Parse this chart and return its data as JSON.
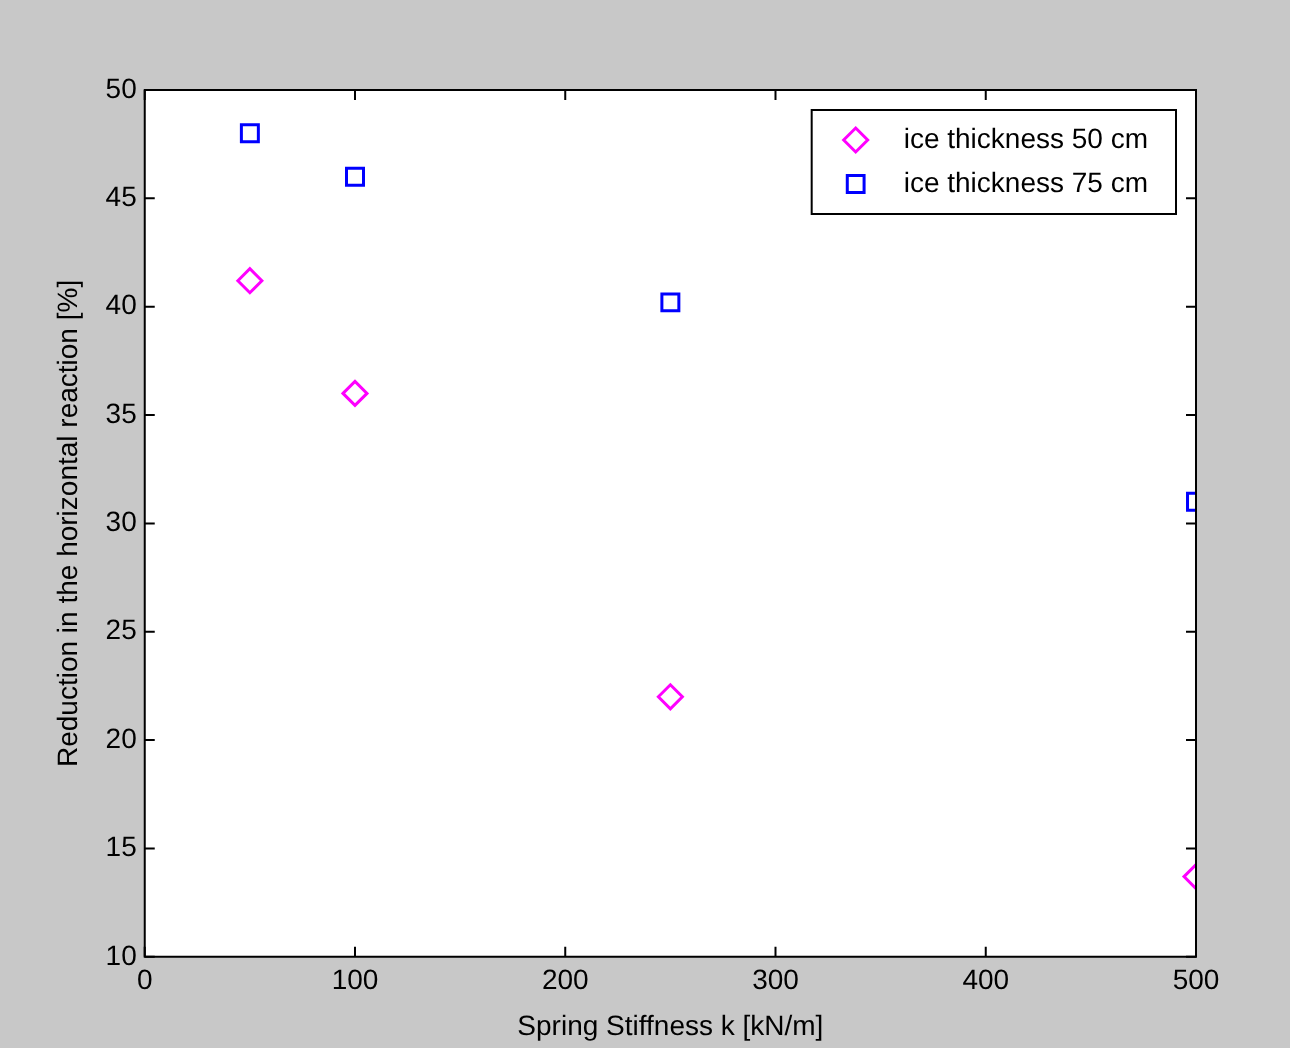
{
  "chart_data": {
    "type": "scatter",
    "xlabel": "Spring Stiffness k [kN/m]",
    "ylabel": "Reduction in the horizontal reaction [%]",
    "xlim": [
      0,
      500
    ],
    "xticks": [
      0,
      100,
      200,
      300,
      400,
      500
    ],
    "ylim": [
      10,
      50
    ],
    "yticks": [
      10,
      15,
      20,
      25,
      30,
      35,
      40,
      45,
      50
    ],
    "grid": false,
    "legend": "top right",
    "series": [
      {
        "name": "ice thickness 50 cm",
        "color": "#ff00ff",
        "marker": "diamond",
        "x": [
          50,
          100,
          250,
          500
        ],
        "values": [
          41.2,
          36,
          22,
          13.7
        ]
      },
      {
        "name": "ice thickness 75 cm",
        "color": "#0000ff",
        "marker": "square",
        "x": [
          50,
          100,
          250,
          500
        ],
        "values": [
          48,
          46,
          40.2,
          31
        ]
      }
    ]
  }
}
